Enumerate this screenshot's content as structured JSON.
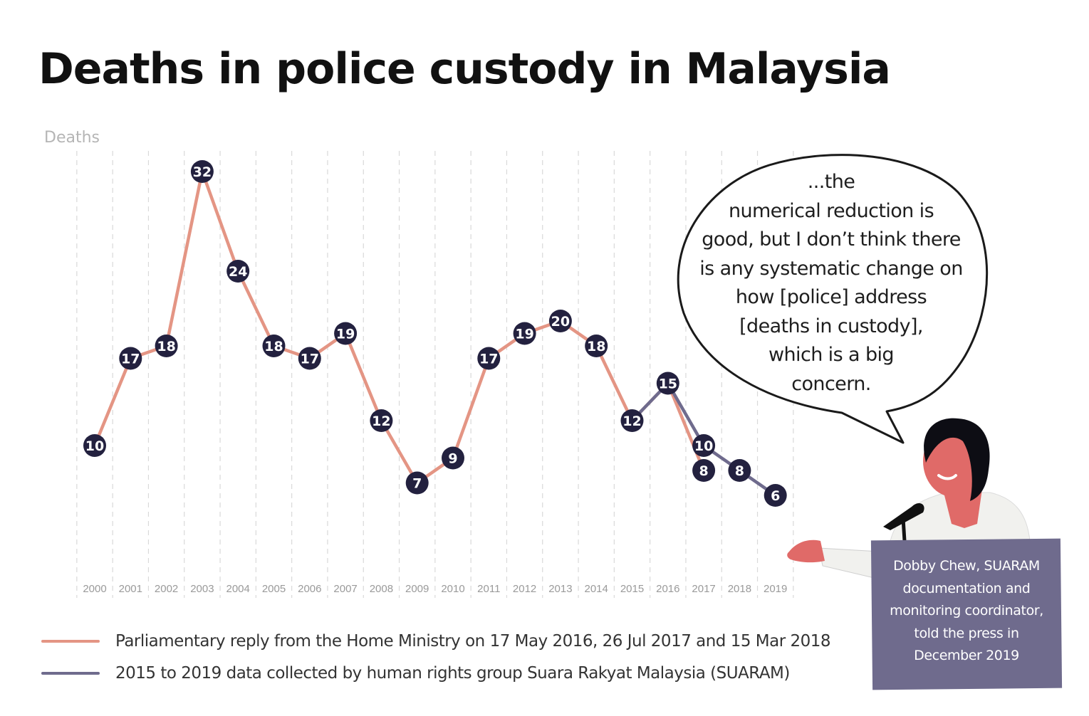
{
  "title": "Deaths in police custody in Malaysia",
  "chart_data": {
    "type": "line",
    "title": "Deaths in police custody in Malaysia",
    "ylabel": "Deaths",
    "xlabel": "",
    "ylim": [
      0,
      35
    ],
    "grid": "vertical dashed",
    "categories": [
      "2000",
      "2001",
      "2002",
      "2003",
      "2004",
      "2005",
      "2006",
      "2007",
      "2008",
      "2009",
      "2010",
      "2011",
      "2012",
      "2013",
      "2014",
      "2015",
      "2016",
      "2017",
      "2018",
      "2019"
    ],
    "series": [
      {
        "name": "Parliamentary reply from the Home Ministry on 17 May 2016, 26 Jul 2017 and 15 Mar 2018",
        "color": "#e49584",
        "x": [
          "2000",
          "2001",
          "2002",
          "2003",
          "2004",
          "2005",
          "2006",
          "2007",
          "2008",
          "2009",
          "2010",
          "2011",
          "2012",
          "2013",
          "2014",
          "2015",
          "2016",
          "2017"
        ],
        "values": [
          10,
          17,
          18,
          32,
          24,
          18,
          17,
          19,
          12,
          7,
          9,
          17,
          19,
          20,
          18,
          12,
          15,
          8
        ]
      },
      {
        "name": "2015 to 2019 data collected by human rights group Suara Rakyat Malaysia (SUARAM)",
        "color": "#6f6b8d",
        "x": [
          "2015",
          "2016",
          "2017",
          "2018",
          "2019"
        ],
        "values": [
          12,
          15,
          10,
          8,
          6
        ]
      }
    ]
  },
  "legend": [
    {
      "label": "Parliamentary reply from the Home Ministry on 17 May 2016, 26 Jul 2017 and 15 Mar 2018",
      "color": "#e49584"
    },
    {
      "label": "2015 to 2019 data collected by human rights group Suara Rakyat Malaysia (SUARAM)",
      "color": "#6f6b8d"
    }
  ],
  "quote": {
    "lines": [
      "...the",
      "numerical reduction is",
      "good, but I don’t think there",
      "is any systematic change on",
      "how [police] address",
      "[deaths in custody],",
      "which is a big",
      "concern."
    ]
  },
  "caption": {
    "lines": [
      "Dobby Chew, SUARAM",
      "documentation and",
      "monitoring coordinator,",
      "told the press in",
      "December 2019"
    ],
    "color": "#6f6b8d"
  },
  "colors": {
    "marker": "#23213f",
    "skin": "#e06a68",
    "hair": "#0d0d14",
    "shirt": "#f1f1ee"
  }
}
